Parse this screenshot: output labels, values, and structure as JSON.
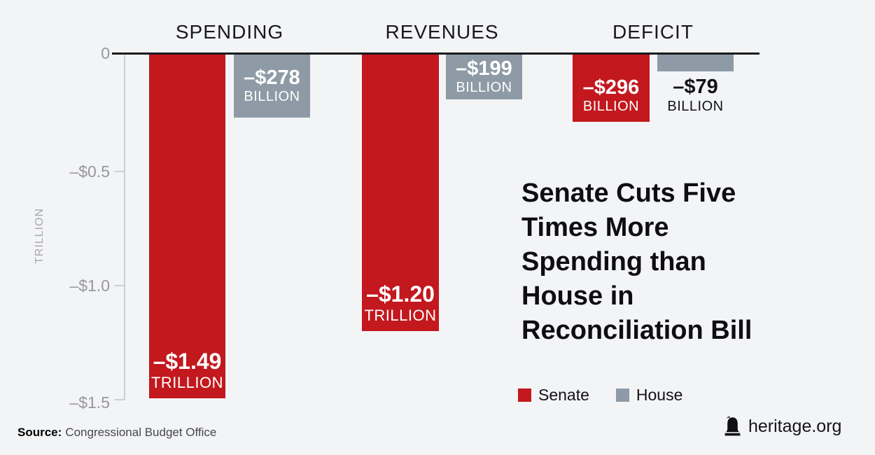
{
  "chart_data": {
    "type": "bar",
    "title": "Senate Cuts Five Times More Spending than House in Reconciliation Bill",
    "title_lines": [
      "Senate Cuts Five",
      "Times More",
      "Spending than",
      "House in",
      "Reconciliation Bill"
    ],
    "categories": [
      "SPENDING",
      "REVENUES",
      "DEFICIT"
    ],
    "series": [
      {
        "name": "Senate",
        "color": "#c2181e",
        "values": [
          -1.49,
          -1.2,
          -0.296
        ]
      },
      {
        "name": "House",
        "color": "#8e9ba6",
        "values": [
          -0.278,
          -0.199,
          -0.079
        ]
      }
    ],
    "units": "trillions of dollars",
    "ylabel": "TRILLION",
    "ylim": [
      -1.5,
      0
    ],
    "yticks": [
      0,
      -0.5,
      -1.0,
      -1.5
    ],
    "grid": false,
    "legend_position": "bottom-right",
    "data_labels": {
      "spending_senate": {
        "value": "–$1.49",
        "unit": "TRILLION"
      },
      "spending_house": {
        "value": "–$278",
        "unit": "BILLION"
      },
      "revenues_senate": {
        "value": "–$1.20",
        "unit": "TRILLION"
      },
      "revenues_house": {
        "value": "–$199",
        "unit": "BILLION"
      },
      "deficit_senate": {
        "value": "–$296",
        "unit": "BILLION"
      },
      "deficit_house": {
        "value": "–$79",
        "unit": "BILLION"
      }
    }
  },
  "axis": {
    "unit_label": "TRILLION",
    "tick_labels": [
      "0",
      "–$0.5",
      "–$1.0",
      "–$1.5"
    ]
  },
  "legend": [
    {
      "label": "Senate",
      "color": "#c2181e"
    },
    {
      "label": "House",
      "color": "#8e9ba6"
    }
  ],
  "source": {
    "prefix": "Source:",
    "text": "Congressional Budget Office"
  },
  "branding": {
    "site": "heritage.org",
    "icon": "liberty-bell-icon"
  },
  "colors": {
    "senate": "#c2181e",
    "house": "#8e9ba6",
    "background": "#f3f4f6",
    "baseline": "#1b1b1d",
    "axis": "#cfcfd4",
    "tick_text": "#97979d"
  }
}
